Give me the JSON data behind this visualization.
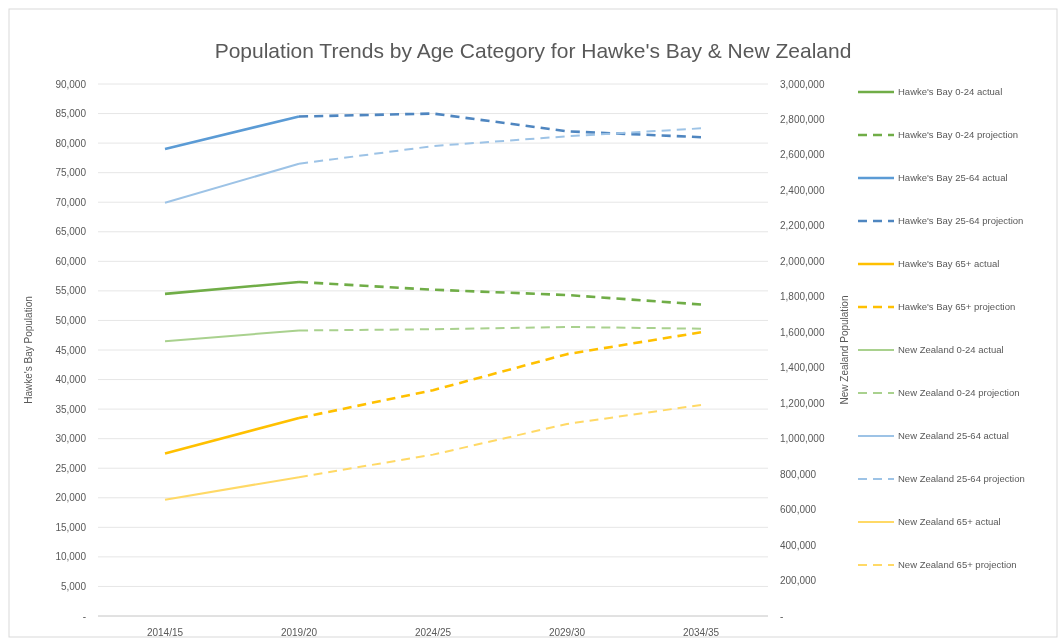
{
  "chart_data": {
    "type": "line",
    "title": "Population Trends by Age Category for Hawke's Bay & New Zealand",
    "ylabel": "Hawke's Bay Population",
    "y2label": "New Zealand Population",
    "categories": [
      "2014/15",
      "2019/20",
      "2024/25",
      "2029/30",
      "2034/35"
    ],
    "ylim": [
      0,
      90000
    ],
    "yticks": [
      {
        "value": 0,
        "label": "-"
      },
      {
        "value": 5000,
        "label": "5,000"
      },
      {
        "value": 10000,
        "label": "10,000"
      },
      {
        "value": 15000,
        "label": "15,000"
      },
      {
        "value": 20000,
        "label": "20,000"
      },
      {
        "value": 25000,
        "label": "25,000"
      },
      {
        "value": 30000,
        "label": "30,000"
      },
      {
        "value": 35000,
        "label": "35,000"
      },
      {
        "value": 40000,
        "label": "40,000"
      },
      {
        "value": 45000,
        "label": "45,000"
      },
      {
        "value": 50000,
        "label": "50,000"
      },
      {
        "value": 55000,
        "label": "55,000"
      },
      {
        "value": 60000,
        "label": "60,000"
      },
      {
        "value": 65000,
        "label": "65,000"
      },
      {
        "value": 70000,
        "label": "70,000"
      },
      {
        "value": 75000,
        "label": "75,000"
      },
      {
        "value": 80000,
        "label": "80,000"
      },
      {
        "value": 85000,
        "label": "85,000"
      },
      {
        "value": 90000,
        "label": "90,000"
      }
    ],
    "y2lim": [
      0,
      3000000
    ],
    "y2ticks": [
      {
        "value": 0,
        "label": "-"
      },
      {
        "value": 200000,
        "label": "200,000"
      },
      {
        "value": 400000,
        "label": "400,000"
      },
      {
        "value": 600000,
        "label": "600,000"
      },
      {
        "value": 800000,
        "label": "800,000"
      },
      {
        "value": 1000000,
        "label": "1,000,000"
      },
      {
        "value": 1200000,
        "label": "1,200,000"
      },
      {
        "value": 1400000,
        "label": "1,400,000"
      },
      {
        "value": 1600000,
        "label": "1,600,000"
      },
      {
        "value": 1800000,
        "label": "1,800,000"
      },
      {
        "value": 2000000,
        "label": "2,000,000"
      },
      {
        "value": 2200000,
        "label": "2,200,000"
      },
      {
        "value": 2400000,
        "label": "2,400,000"
      },
      {
        "value": 2600000,
        "label": "2,600,000"
      },
      {
        "value": 2800000,
        "label": "2,800,000"
      },
      {
        "value": 3000000,
        "label": "3,000,000"
      }
    ],
    "grid": "y",
    "legend": "right",
    "series": [
      {
        "name": "Hawke's Bay 0-24 actual",
        "color": "#70ad47",
        "line_style": "solid",
        "values": [
          54500,
          56500,
          null,
          null,
          null
        ]
      },
      {
        "name": "Hawke's Bay 0-24 projection",
        "color": "#70ad47",
        "line_style": "dashed",
        "values": [
          null,
          56500,
          55200,
          54300,
          52700
        ]
      },
      {
        "name": "Hawke's Bay 25-64 actual",
        "color": "#5b9bd5",
        "line_style": "solid",
        "values": [
          79000,
          84500,
          null,
          null,
          null
        ]
      },
      {
        "name": "Hawke's Bay 25-64 projection",
        "color": "#4f86c0",
        "line_style": "dashed",
        "values": [
          null,
          84500,
          85000,
          82000,
          81000
        ]
      },
      {
        "name": "Hawke's Bay 65+ actual",
        "color": "#ffc000",
        "line_style": "solid",
        "values": [
          27500,
          33500,
          null,
          null,
          null
        ]
      },
      {
        "name": "Hawke's Bay 65+ projection",
        "color": "#ffc000",
        "line_style": "dashed",
        "values": [
          null,
          33500,
          38200,
          44300,
          48000
        ]
      },
      {
        "name": "New Zealand 0-24 actual",
        "color": "#a9d18e",
        "line_style": "solid",
        "axis": "y2",
        "values": [
          1550000,
          1610000,
          null,
          null,
          null
        ]
      },
      {
        "name": "New Zealand 0-24 projection",
        "color": "#a9d18e",
        "line_style": "dashed",
        "axis": "y2",
        "values": [
          null,
          1610000,
          1617000,
          1630000,
          1620000
        ]
      },
      {
        "name": "New Zealand 25-64 actual",
        "color": "#9dc3e6",
        "line_style": "solid",
        "axis": "y2",
        "values": [
          2330000,
          2550000,
          null,
          null,
          null
        ]
      },
      {
        "name": "New Zealand 25-64 projection",
        "color": "#9dc3e6",
        "line_style": "dashed",
        "axis": "y2",
        "values": [
          null,
          2550000,
          2650000,
          2705000,
          2750000
        ]
      },
      {
        "name": "New Zealand 65+ actual",
        "color": "#ffd966",
        "line_style": "solid",
        "axis": "y2",
        "values": [
          656000,
          783000,
          null,
          null,
          null
        ]
      },
      {
        "name": "New Zealand 65+ projection",
        "color": "#ffd966",
        "line_style": "dashed",
        "axis": "y2",
        "values": [
          null,
          783000,
          910000,
          1083000,
          1190000
        ]
      }
    ]
  }
}
